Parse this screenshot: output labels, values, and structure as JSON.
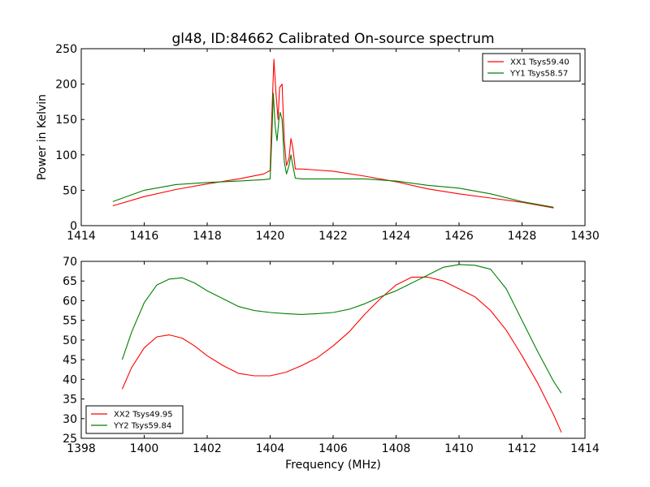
{
  "chart_data": [
    {
      "type": "line",
      "title": "gl48, ID:84662 Calibrated On-source spectrum",
      "xlabel": "",
      "ylabel": "Power in Kelvin",
      "xlim": [
        1414,
        1430
      ],
      "ylim": [
        0,
        250
      ],
      "xticks": [
        1414,
        1416,
        1418,
        1420,
        1422,
        1424,
        1426,
        1428,
        1430
      ],
      "yticks": [
        0,
        50,
        100,
        150,
        200,
        250
      ],
      "legend_position": "upper right",
      "series": [
        {
          "name": "XX1 Tsys59.40",
          "color": "#ff0000",
          "x": [
            1415.0,
            1416.0,
            1417.0,
            1418.0,
            1419.0,
            1419.8,
            1420.0,
            1420.05,
            1420.12,
            1420.18,
            1420.25,
            1420.3,
            1420.38,
            1420.45,
            1420.52,
            1420.6,
            1420.66,
            1420.72,
            1420.8,
            1421.0,
            1422.0,
            1423.0,
            1424.0,
            1425.0,
            1426.0,
            1427.0,
            1428.0,
            1429.0
          ],
          "y": [
            28,
            41,
            51,
            59,
            66,
            73,
            78,
            150,
            235,
            190,
            150,
            195,
            200,
            120,
            85,
            95,
            123,
            110,
            80,
            80,
            77,
            70,
            62,
            52,
            45,
            39,
            33,
            25
          ]
        },
        {
          "name": "YY1 Tsys58.57",
          "color": "#008000",
          "x": [
            1415.0,
            1416.0,
            1417.0,
            1418.0,
            1419.0,
            1419.8,
            1420.0,
            1420.05,
            1420.1,
            1420.16,
            1420.22,
            1420.28,
            1420.32,
            1420.38,
            1420.45,
            1420.52,
            1420.6,
            1420.66,
            1420.72,
            1420.8,
            1421.0,
            1422.0,
            1423.0,
            1424.0,
            1425.0,
            1426.0,
            1427.0,
            1428.0,
            1429.0
          ],
          "y": [
            34,
            50,
            58,
            61,
            63,
            65,
            66,
            120,
            187,
            140,
            120,
            150,
            160,
            150,
            90,
            73,
            85,
            100,
            85,
            67,
            66,
            66,
            66,
            63,
            57,
            53,
            45,
            34,
            26
          ]
        }
      ]
    },
    {
      "type": "line",
      "title": "",
      "xlabel": "Frequency (MHz)",
      "ylabel": "",
      "xlim": [
        1398,
        1414
      ],
      "ylim": [
        25,
        70
      ],
      "xticks": [
        1398,
        1400,
        1402,
        1404,
        1406,
        1408,
        1410,
        1412,
        1414
      ],
      "yticks": [
        25,
        30,
        35,
        40,
        45,
        50,
        55,
        60,
        65,
        70
      ],
      "legend_position": "lower left",
      "series": [
        {
          "name": "XX2 Tsys49.95",
          "color": "#ff0000",
          "x": [
            1399.3,
            1399.6,
            1400.0,
            1400.4,
            1400.8,
            1401.2,
            1401.6,
            1402.0,
            1402.5,
            1403.0,
            1403.5,
            1404.0,
            1404.5,
            1405.0,
            1405.5,
            1406.0,
            1406.5,
            1407.0,
            1407.5,
            1408.0,
            1408.5,
            1409.0,
            1409.5,
            1410.0,
            1410.5,
            1411.0,
            1411.5,
            1412.0,
            1412.5,
            1413.0,
            1413.25
          ],
          "y": [
            37.5,
            43,
            48,
            50.8,
            51.3,
            50.5,
            48.5,
            46,
            43.5,
            41.5,
            40.9,
            40.9,
            41.8,
            43.5,
            45.5,
            48.5,
            52,
            56.5,
            60.5,
            64,
            66,
            66,
            65,
            63,
            61,
            57.5,
            52.5,
            46,
            39,
            31,
            26.5
          ]
        },
        {
          "name": "YY2 Tsys59.84",
          "color": "#008000",
          "x": [
            1399.3,
            1399.6,
            1400.0,
            1400.4,
            1400.8,
            1401.2,
            1401.6,
            1402.0,
            1402.5,
            1403.0,
            1403.5,
            1404.0,
            1404.5,
            1405.0,
            1405.5,
            1406.0,
            1406.5,
            1407.0,
            1407.5,
            1408.0,
            1408.5,
            1409.0,
            1409.5,
            1410.0,
            1410.5,
            1411.0,
            1411.5,
            1412.0,
            1412.5,
            1413.0,
            1413.25
          ],
          "y": [
            45,
            52,
            59.5,
            64,
            65.5,
            65.8,
            64.5,
            62.5,
            60.5,
            58.5,
            57.5,
            57,
            56.7,
            56.5,
            56.7,
            57,
            57.8,
            59.2,
            61,
            62.5,
            64.5,
            66.5,
            68.5,
            69.2,
            69,
            68,
            63,
            55,
            47,
            39.5,
            36.5
          ]
        }
      ]
    }
  ]
}
